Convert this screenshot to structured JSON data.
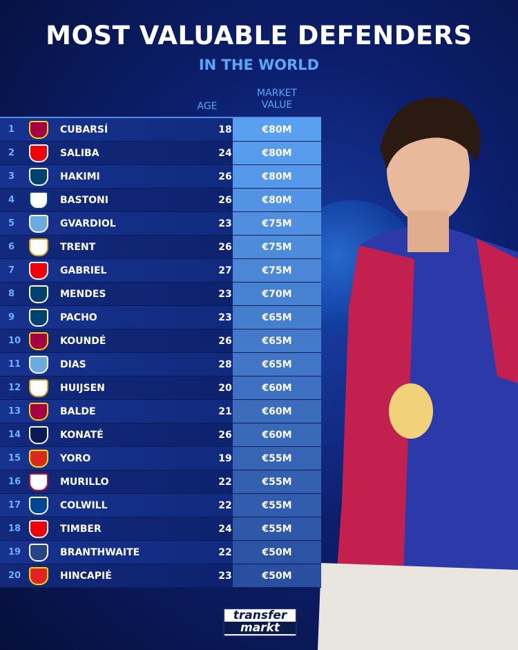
{
  "header": {
    "title": "MOST VALUABLE DEFENDERS",
    "subtitle": "IN THE WORLD"
  },
  "columns": {
    "age": "AGE",
    "value_line1": "MARKET",
    "value_line2": "VALUE"
  },
  "colors": {
    "accent": "#5aa8f5",
    "value_top": "#5aa0f0",
    "value_bottom": "#2a4fa0"
  },
  "rows": [
    {
      "rank": "1",
      "club": "Barcelona",
      "name": "CUBARSÍ",
      "age": "18",
      "value": "€80M"
    },
    {
      "rank": "2",
      "club": "Arsenal",
      "name": "SALIBA",
      "age": "24",
      "value": "€80M"
    },
    {
      "rank": "3",
      "club": "PSG",
      "name": "HAKIMI",
      "age": "26",
      "value": "€80M"
    },
    {
      "rank": "4",
      "club": "Inter",
      "name": "BASTONI",
      "age": "26",
      "value": "€80M"
    },
    {
      "rank": "5",
      "club": "Man City",
      "name": "GVARDIOL",
      "age": "23",
      "value": "€75M"
    },
    {
      "rank": "6",
      "club": "Real Madrid",
      "name": "TRENT",
      "age": "26",
      "value": "€75M"
    },
    {
      "rank": "7",
      "club": "Arsenal",
      "name": "GABRIEL",
      "age": "27",
      "value": "€75M"
    },
    {
      "rank": "8",
      "club": "PSG",
      "name": "MENDES",
      "age": "23",
      "value": "€70M"
    },
    {
      "rank": "9",
      "club": "PSG",
      "name": "PACHO",
      "age": "23",
      "value": "€65M"
    },
    {
      "rank": "10",
      "club": "Barcelona",
      "name": "KOUNDÉ",
      "age": "26",
      "value": "€65M"
    },
    {
      "rank": "11",
      "club": "Man City",
      "name": "DIAS",
      "age": "28",
      "value": "€65M"
    },
    {
      "rank": "12",
      "club": "Real Madrid",
      "name": "HUIJSEN",
      "age": "20",
      "value": "€60M"
    },
    {
      "rank": "13",
      "club": "Barcelona",
      "name": "BALDE",
      "age": "21",
      "value": "€60M"
    },
    {
      "rank": "14",
      "club": "Liverpool",
      "name": "KONATÉ",
      "age": "26",
      "value": "€60M"
    },
    {
      "rank": "15",
      "club": "Man United",
      "name": "YORO",
      "age": "19",
      "value": "€55M"
    },
    {
      "rank": "16",
      "club": "Nottingham Forest",
      "name": "MURILLO",
      "age": "22",
      "value": "€55M"
    },
    {
      "rank": "17",
      "club": "Chelsea",
      "name": "COLWILL",
      "age": "22",
      "value": "€55M"
    },
    {
      "rank": "18",
      "club": "Arsenal",
      "name": "TIMBER",
      "age": "24",
      "value": "€55M"
    },
    {
      "rank": "19",
      "club": "Everton",
      "name": "BRANTHWAITE",
      "age": "22",
      "value": "€50M"
    },
    {
      "rank": "20",
      "club": "Leverkusen",
      "name": "HINCAPIÉ",
      "age": "23",
      "value": "€50M"
    }
  ],
  "brand": {
    "line1": "transfer",
    "line2": "markt"
  }
}
